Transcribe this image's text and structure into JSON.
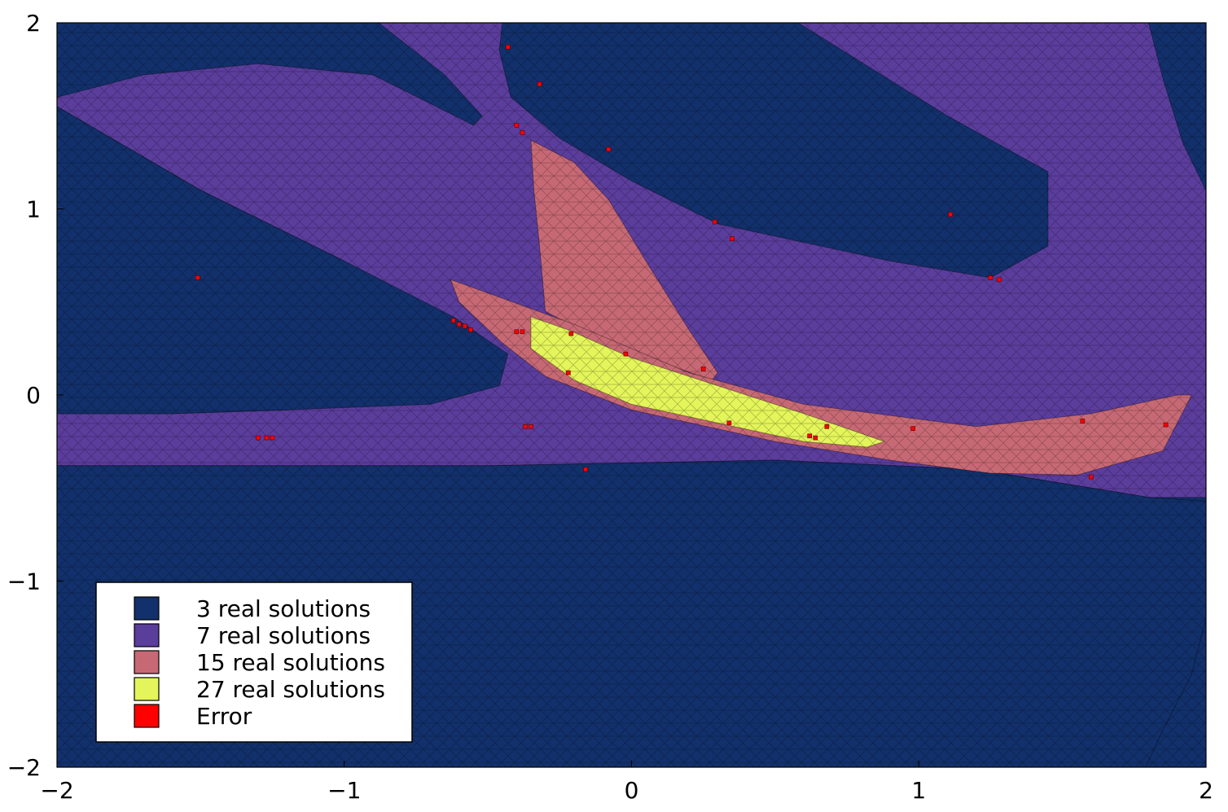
{
  "chart_data": {
    "type": "heatmap",
    "title": "",
    "xlabel": "",
    "ylabel": "",
    "xlim": [
      -2,
      2
    ],
    "ylim": [
      -2,
      2
    ],
    "xticks": [
      {
        "value": -2,
        "label": "−2"
      },
      {
        "value": -1,
        "label": "−1"
      },
      {
        "value": 0,
        "label": "0"
      },
      {
        "value": 1,
        "label": "1"
      },
      {
        "value": 2,
        "label": "2"
      }
    ],
    "yticks": [
      {
        "value": 2,
        "label": "2"
      },
      {
        "value": 1,
        "label": "1"
      },
      {
        "value": 0,
        "label": "0"
      },
      {
        "value": -1,
        "label": "−1"
      },
      {
        "value": -2,
        "label": "−2"
      }
    ],
    "grid": false,
    "legend_position": "bottom-left",
    "legend": [
      {
        "label": "3 real solutions",
        "color": "#12306b"
      },
      {
        "label": "7 real solutions",
        "color": "#5b3d9c"
      },
      {
        "label": "15 real solutions",
        "color": "#c76975"
      },
      {
        "label": "27 real solutions",
        "color": "#e3f55a"
      },
      {
        "label": "Error",
        "color": "#ff0000"
      }
    ],
    "background_region": 0,
    "regions": [
      {
        "class": 1,
        "name": "upper-purple-band",
        "polygon": [
          [
            -2,
            2
          ],
          [
            2,
            2
          ],
          [
            2,
            -0.55
          ],
          [
            1.8,
            -0.55
          ],
          [
            1.2,
            -0.4
          ],
          [
            0.5,
            -0.35
          ],
          [
            -0.5,
            -0.38
          ],
          [
            -1.2,
            -0.38
          ],
          [
            -2,
            -0.38
          ],
          [
            -2,
            -0.1
          ],
          [
            -1.6,
            -0.1
          ],
          [
            -1.2,
            -0.08
          ],
          [
            -0.9,
            -0.02
          ],
          [
            -0.55,
            0.12
          ],
          [
            -0.6,
            0.1
          ],
          [
            -1.0,
            0.72
          ],
          [
            -1.5,
            1.1
          ],
          [
            -2,
            1.55
          ]
        ]
      },
      {
        "class": 0,
        "name": "top-left-blob",
        "polygon": [
          [
            -2,
            2
          ],
          [
            -0.88,
            2
          ],
          [
            -0.65,
            1.72
          ],
          [
            -0.52,
            1.5
          ],
          [
            -0.55,
            1.45
          ],
          [
            -0.9,
            1.72
          ],
          [
            -1.3,
            1.78
          ],
          [
            -1.7,
            1.72
          ],
          [
            -2,
            1.6
          ]
        ]
      },
      {
        "class": 0,
        "name": "top-blob",
        "polygon": [
          [
            -0.45,
            2
          ],
          [
            0.58,
            2
          ],
          [
            1.1,
            1.5
          ],
          [
            1.45,
            1.2
          ],
          [
            1.45,
            0.8
          ],
          [
            1.25,
            0.63
          ],
          [
            0.9,
            0.72
          ],
          [
            0.3,
            0.92
          ],
          [
            0.0,
            1.15
          ],
          [
            -0.25,
            1.38
          ],
          [
            -0.42,
            1.6
          ],
          [
            -0.46,
            1.85
          ]
        ]
      },
      {
        "class": 0,
        "name": "top-right-blob",
        "polygon": [
          [
            1.8,
            2
          ],
          [
            2,
            2
          ],
          [
            2,
            1.1
          ],
          [
            1.92,
            1.35
          ],
          [
            1.85,
            1.7
          ]
        ]
      },
      {
        "class": 0,
        "name": "left-blob",
        "polygon": [
          [
            -2,
            1.55
          ],
          [
            -1.5,
            1.1
          ],
          [
            -1.0,
            0.72
          ],
          [
            -0.62,
            0.42
          ],
          [
            -0.43,
            0.22
          ],
          [
            -0.46,
            0.05
          ],
          [
            -0.7,
            -0.05
          ],
          [
            -1.2,
            -0.08
          ],
          [
            -1.6,
            -0.1
          ],
          [
            -2,
            -0.1
          ]
        ]
      },
      {
        "class": 0,
        "name": "bottom-blob",
        "polygon": [
          [
            -2,
            -0.38
          ],
          [
            -1.2,
            -0.38
          ],
          [
            -0.5,
            -0.38
          ],
          [
            0.5,
            -0.35
          ],
          [
            1.2,
            -0.4
          ],
          [
            1.8,
            -0.55
          ],
          [
            2,
            -0.57
          ],
          [
            2,
            -1.2
          ],
          [
            1.95,
            -1.5
          ],
          [
            1.85,
            -1.8
          ],
          [
            1.79,
            -2
          ],
          [
            -2,
            -2
          ]
        ]
      },
      {
        "class": 2,
        "name": "pink-spike",
        "polygon": [
          [
            -0.35,
            1.37
          ],
          [
            -0.2,
            1.25
          ],
          [
            -0.08,
            1.05
          ],
          [
            0.05,
            0.72
          ],
          [
            0.2,
            0.35
          ],
          [
            0.3,
            0.12
          ],
          [
            0.28,
            0.08
          ],
          [
            0.15,
            0.15
          ],
          [
            0.0,
            0.2
          ],
          [
            -0.3,
            0.45
          ],
          [
            -0.32,
            0.8
          ],
          [
            -0.34,
            1.1
          ]
        ]
      },
      {
        "class": 2,
        "name": "pink-lower-band",
        "polygon": [
          [
            -0.63,
            0.62
          ],
          [
            -0.45,
            0.52
          ],
          [
            -0.2,
            0.38
          ],
          [
            0.2,
            0.12
          ],
          [
            0.6,
            -0.05
          ],
          [
            1.2,
            -0.17
          ],
          [
            1.6,
            -0.1
          ],
          [
            1.9,
            0.0
          ],
          [
            1.95,
            0.0
          ],
          [
            1.85,
            -0.3
          ],
          [
            1.55,
            -0.43
          ],
          [
            1.25,
            -0.42
          ],
          [
            0.9,
            -0.35
          ],
          [
            0.5,
            -0.25
          ],
          [
            0.0,
            -0.08
          ],
          [
            -0.3,
            0.1
          ],
          [
            -0.45,
            0.28
          ],
          [
            -0.6,
            0.5
          ]
        ]
      },
      {
        "class": 3,
        "name": "yellow-sliver",
        "polygon": [
          [
            -0.35,
            0.42
          ],
          [
            -0.22,
            0.35
          ],
          [
            0.0,
            0.2
          ],
          [
            0.3,
            0.05
          ],
          [
            0.6,
            -0.1
          ],
          [
            0.88,
            -0.25
          ],
          [
            0.82,
            -0.28
          ],
          [
            0.6,
            -0.25
          ],
          [
            0.3,
            -0.15
          ],
          [
            0.0,
            -0.05
          ],
          [
            -0.2,
            0.08
          ],
          [
            -0.35,
            0.25
          ]
        ]
      }
    ],
    "error_points": [
      [
        -0.43,
        1.87
      ],
      [
        -0.32,
        1.67
      ],
      [
        -0.4,
        1.45
      ],
      [
        -0.38,
        1.41
      ],
      [
        -0.08,
        1.32
      ],
      [
        -1.51,
        0.63
      ],
      [
        0.29,
        0.93
      ],
      [
        0.35,
        0.84
      ],
      [
        1.11,
        0.97
      ],
      [
        1.25,
        0.63
      ],
      [
        1.28,
        0.62
      ],
      [
        -0.62,
        0.4
      ],
      [
        -0.6,
        0.38
      ],
      [
        -0.58,
        0.37
      ],
      [
        -0.56,
        0.35
      ],
      [
        -0.4,
        0.34
      ],
      [
        -0.38,
        0.34
      ],
      [
        -0.21,
        0.33
      ],
      [
        -0.02,
        0.22
      ],
      [
        -0.22,
        0.12
      ],
      [
        0.25,
        0.14
      ],
      [
        -1.3,
        -0.23
      ],
      [
        -1.27,
        -0.23
      ],
      [
        -1.25,
        -0.23
      ],
      [
        -0.37,
        -0.17
      ],
      [
        -0.35,
        -0.17
      ],
      [
        0.34,
        -0.15
      ],
      [
        0.62,
        -0.22
      ],
      [
        0.64,
        -0.23
      ],
      [
        0.68,
        -0.17
      ],
      [
        0.98,
        -0.18
      ],
      [
        1.57,
        -0.14
      ],
      [
        1.86,
        -0.16
      ],
      [
        -0.16,
        -0.4
      ],
      [
        1.6,
        -0.44
      ]
    ]
  }
}
